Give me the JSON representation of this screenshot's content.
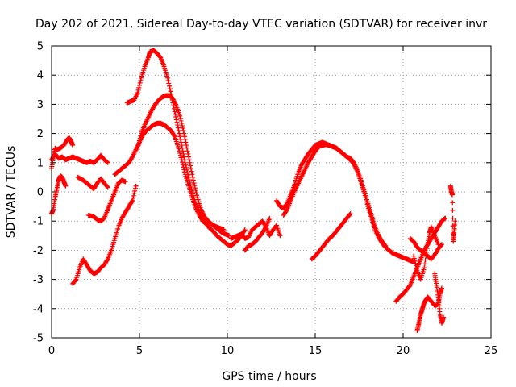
{
  "chart_data": {
    "type": "scatter",
    "title": "Day 202 of 2021, Sidereal Day-to-day VTEC variation (SDTVAR) for receiver invr",
    "xlabel": "GPS time / hours",
    "ylabel": "SDTVAR / TECUs",
    "xlim": [
      0,
      25
    ],
    "ylim": [
      -5,
      5
    ],
    "xticks": [
      0,
      5,
      10,
      15,
      20,
      25
    ],
    "yticks": [
      -5,
      -4,
      -3,
      -2,
      -1,
      0,
      1,
      2,
      3,
      4,
      5
    ],
    "xtick_labels": [
      "0",
      "5",
      "10",
      "15",
      "20",
      "25"
    ],
    "ytick_labels": [
      "-5",
      "-4",
      "-3",
      "-2",
      "-1",
      "0",
      "1",
      "2",
      "3",
      "4",
      "5"
    ],
    "grid": true,
    "marker": "+",
    "color": "#ff0000",
    "series": [
      {
        "name": "track-1",
        "x": [
          0.0,
          0.2,
          0.4,
          0.6,
          0.8,
          1.0,
          1.2,
          1.4,
          1.6,
          1.8,
          2.0,
          2.2,
          2.4,
          2.6,
          2.8,
          3.0,
          3.2
        ],
        "y": [
          1.1,
          1.3,
          1.15,
          1.2,
          1.1,
          1.15,
          1.2,
          1.15,
          1.1,
          1.05,
          1.0,
          1.05,
          1.0,
          1.1,
          1.25,
          1.1,
          1.0
        ]
      },
      {
        "name": "track-2",
        "x": [
          0.0,
          0.1,
          0.2,
          0.3,
          0.5,
          0.7,
          0.9,
          1.0,
          1.1,
          1.2
        ],
        "y": [
          0.8,
          1.2,
          1.5,
          1.45,
          1.5,
          1.6,
          1.8,
          1.85,
          1.75,
          1.6
        ]
      },
      {
        "name": "track-3",
        "x": [
          0.0,
          0.1,
          0.2,
          0.3,
          0.4,
          0.5,
          0.6,
          0.7,
          0.8
        ],
        "y": [
          -0.75,
          -0.6,
          -0.2,
          0.1,
          0.4,
          0.55,
          0.5,
          0.35,
          0.2
        ]
      },
      {
        "name": "track-4",
        "x": [
          1.2,
          1.4,
          1.6,
          1.8,
          2.0,
          2.2,
          2.4,
          2.6,
          2.8,
          3.0,
          3.2,
          3.4,
          3.6,
          3.8,
          4.0,
          4.2,
          4.4,
          4.6,
          4.8
        ],
        "y": [
          -3.15,
          -3.0,
          -2.6,
          -2.3,
          -2.5,
          -2.7,
          -2.8,
          -2.75,
          -2.6,
          -2.5,
          -2.3,
          -2.0,
          -1.6,
          -1.2,
          -0.9,
          -0.7,
          -0.5,
          -0.3,
          0.2
        ]
      },
      {
        "name": "track-5",
        "x": [
          2.1,
          2.4,
          2.6,
          2.8,
          3.0,
          3.2,
          3.4,
          3.6,
          3.8,
          4.0,
          4.2
        ],
        "y": [
          -0.8,
          -0.85,
          -0.95,
          -1.0,
          -0.9,
          -0.6,
          -0.3,
          0.0,
          0.3,
          0.4,
          0.35
        ]
      },
      {
        "name": "track-6",
        "x": [
          1.5,
          1.8,
          2.0,
          2.2,
          2.4,
          2.6,
          2.8,
          3.0,
          3.2
        ],
        "y": [
          0.5,
          0.4,
          0.3,
          0.2,
          0.1,
          0.3,
          0.45,
          0.3,
          0.15
        ]
      },
      {
        "name": "track-7",
        "x": [
          3.6,
          3.8,
          4.0,
          4.2,
          4.4,
          4.6,
          4.8,
          5.0,
          5.2,
          5.4,
          5.6,
          5.8,
          6.0,
          6.2,
          6.4,
          6.6,
          6.8,
          7.0,
          7.2,
          7.4,
          7.6,
          7.8,
          8.0,
          8.2,
          8.4,
          8.6,
          8.8,
          9.0,
          9.2,
          9.4,
          9.6,
          9.8,
          10.0,
          10.2,
          10.4,
          10.6,
          10.8,
          11.0
        ],
        "y": [
          0.6,
          0.7,
          0.8,
          0.9,
          1.0,
          1.2,
          1.45,
          1.7,
          1.95,
          2.1,
          2.2,
          2.3,
          2.35,
          2.35,
          2.3,
          2.2,
          2.1,
          1.9,
          1.55,
          1.1,
          0.6,
          0.2,
          -0.2,
          -0.55,
          -0.8,
          -1.0,
          -1.1,
          -1.25,
          -1.35,
          -1.5,
          -1.6,
          -1.7,
          -1.8,
          -1.85,
          -1.75,
          -1.65,
          -1.5,
          -1.3
        ]
      },
      {
        "name": "track-8",
        "x": [
          4.9,
          5.1,
          5.3,
          5.5,
          5.7,
          5.9,
          6.1,
          6.3,
          6.5,
          6.7,
          6.9,
          7.1,
          7.3,
          7.5,
          7.7,
          7.9,
          8.1,
          8.3,
          8.5,
          8.7,
          8.9,
          9.1,
          9.3,
          9.5,
          9.7,
          9.9,
          10.1
        ],
        "y": [
          1.5,
          2.0,
          2.3,
          2.55,
          2.8,
          3.0,
          3.15,
          3.25,
          3.3,
          3.3,
          3.2,
          2.95,
          2.6,
          2.1,
          1.5,
          0.9,
          0.3,
          -0.2,
          -0.6,
          -0.85,
          -1.0,
          -1.1,
          -1.2,
          -1.3,
          -1.4,
          -1.45,
          -1.5
        ]
      },
      {
        "name": "track-9",
        "x": [
          4.3,
          4.5,
          4.7,
          4.9,
          5.1,
          5.3,
          5.5,
          5.6,
          5.8,
          6.0,
          6.2,
          6.4,
          6.6,
          6.8,
          7.0,
          7.2,
          7.4,
          7.6,
          7.8,
          8.0,
          8.2,
          8.4,
          8.6,
          8.8,
          9.0,
          9.2,
          9.4,
          9.6,
          9.8
        ],
        "y": [
          3.05,
          3.1,
          3.15,
          3.4,
          3.9,
          4.3,
          4.6,
          4.8,
          4.85,
          4.75,
          4.6,
          4.3,
          3.9,
          3.35,
          2.75,
          2.2,
          1.6,
          1.0,
          0.5,
          0.0,
          -0.4,
          -0.7,
          -0.85,
          -0.95,
          -1.05,
          -1.15,
          -1.2,
          -1.25,
          -1.3
        ]
      },
      {
        "name": "track-10",
        "x": [
          10.2,
          10.4,
          10.6,
          10.8,
          11.0,
          11.2,
          11.4,
          11.6,
          11.8,
          12.0,
          12.2,
          12.4,
          12.6,
          12.8,
          13.0
        ],
        "y": [
          -1.6,
          -1.55,
          -1.5,
          -1.45,
          -1.6,
          -1.55,
          -1.3,
          -1.2,
          -1.1,
          -1.0,
          -1.2,
          -1.5,
          -1.3,
          -1.15,
          -1.5
        ]
      },
      {
        "name": "track-11",
        "x": [
          11.0,
          11.2,
          11.4,
          11.6,
          11.8,
          12.0,
          12.2,
          12.4
        ],
        "y": [
          -2.0,
          -1.85,
          -1.8,
          -1.7,
          -1.55,
          -1.4,
          -1.2,
          -0.9
        ]
      },
      {
        "name": "track-12",
        "x": [
          12.8,
          13.0,
          13.2,
          13.4,
          13.6,
          13.8,
          14.0,
          14.2,
          14.4,
          14.6,
          14.8,
          15.0,
          15.2,
          15.4,
          15.6,
          15.8,
          16.0,
          16.2,
          16.4,
          16.6,
          16.8,
          17.0,
          17.2,
          17.4,
          17.6,
          17.8,
          18.0,
          18.2,
          18.4,
          18.6,
          18.8,
          19.0,
          19.2,
          19.4,
          19.6,
          19.8,
          20.0,
          20.2,
          20.4,
          20.6
        ],
        "y": [
          -0.3,
          -0.5,
          -0.55,
          -0.4,
          -0.1,
          0.2,
          0.6,
          0.9,
          1.1,
          1.3,
          1.45,
          1.6,
          1.65,
          1.7,
          1.65,
          1.6,
          1.55,
          1.5,
          1.4,
          1.3,
          1.2,
          1.1,
          0.95,
          0.7,
          0.35,
          -0.05,
          -0.5,
          -0.9,
          -1.3,
          -1.55,
          -1.75,
          -1.9,
          -2.0,
          -2.1,
          -2.15,
          -2.2,
          -2.25,
          -2.3,
          -2.35,
          -2.4
        ]
      },
      {
        "name": "track-13",
        "x": [
          13.2,
          13.4,
          13.6,
          13.8,
          14.0,
          14.2,
          14.4,
          14.6,
          14.8,
          15.0,
          15.2,
          15.4,
          15.6,
          15.8,
          16.0,
          16.2,
          16.4,
          16.6,
          16.8,
          17.0,
          17.2,
          17.4,
          17.6,
          17.8,
          18.0,
          18.2,
          18.4,
          18.6,
          18.8,
          19.0
        ],
        "y": [
          -0.8,
          -0.6,
          -0.3,
          0.0,
          0.25,
          0.5,
          0.75,
          1.0,
          1.2,
          1.4,
          1.55,
          1.6,
          1.62,
          1.6,
          1.55,
          1.5,
          1.4,
          1.3,
          1.2,
          1.15,
          1.0,
          0.75,
          0.4,
          0.0,
          -0.4,
          -0.8,
          -1.2,
          -1.5,
          -1.7,
          -1.85
        ]
      },
      {
        "name": "track-14",
        "x": [
          14.8,
          15.0,
          15.2,
          15.4,
          15.6,
          15.8,
          16.0,
          16.2,
          16.4,
          16.6,
          16.8,
          17.0
        ],
        "y": [
          -2.3,
          -2.2,
          -2.05,
          -1.9,
          -1.75,
          -1.6,
          -1.5,
          -1.35,
          -1.2,
          -1.05,
          -0.9,
          -0.75
        ]
      },
      {
        "name": "track-15",
        "x": [
          19.6,
          19.8,
          20.0,
          20.2,
          20.4,
          20.6,
          20.8,
          21.0,
          21.2,
          21.4,
          21.6,
          21.8,
          22.0,
          22.2,
          22.4
        ],
        "y": [
          -3.75,
          -3.6,
          -3.5,
          -3.35,
          -3.2,
          -2.9,
          -2.6,
          -2.3,
          -2.0,
          -1.8,
          -1.6,
          -1.4,
          -1.2,
          -1.0,
          -0.9
        ]
      },
      {
        "name": "track-16",
        "x": [
          20.4,
          20.6,
          20.8,
          21.0,
          21.2,
          21.4,
          21.6,
          21.8,
          22.0,
          22.2
        ],
        "y": [
          -1.6,
          -1.7,
          -1.9,
          -2.0,
          -2.1,
          -2.2,
          -2.3,
          -2.15,
          -1.95,
          -1.8
        ]
      },
      {
        "name": "track-17",
        "x": [
          20.8,
          20.9,
          21.0,
          21.1,
          21.2,
          21.3,
          21.4,
          21.6,
          21.8,
          22.0,
          22.1,
          22.2
        ],
        "y": [
          -4.75,
          -4.5,
          -4.2,
          -4.0,
          -3.8,
          -3.7,
          -3.6,
          -3.75,
          -3.9,
          -3.85,
          -3.5,
          -3.3
        ]
      },
      {
        "name": "track-18",
        "x": [
          20.6,
          20.8,
          21.0,
          21.2,
          21.4,
          21.5,
          21.6,
          21.8,
          22.0
        ],
        "y": [
          -2.2,
          -2.7,
          -3.0,
          -2.6,
          -1.8,
          -1.4,
          -1.2,
          -1.5,
          -1.8
        ]
      },
      {
        "name": "track-19",
        "x": [
          21.8,
          21.9,
          22.0,
          22.1,
          22.2,
          22.3
        ],
        "y": [
          -2.8,
          -3.2,
          -3.6,
          -4.2,
          -4.5,
          -4.3
        ]
      },
      {
        "name": "track-20",
        "x": [
          22.7,
          22.75,
          22.8,
          22.85,
          22.9,
          22.95
        ],
        "y": [
          0.2,
          0.0,
          -0.1,
          -1.7,
          -1.4,
          -1.0
        ]
      }
    ]
  }
}
